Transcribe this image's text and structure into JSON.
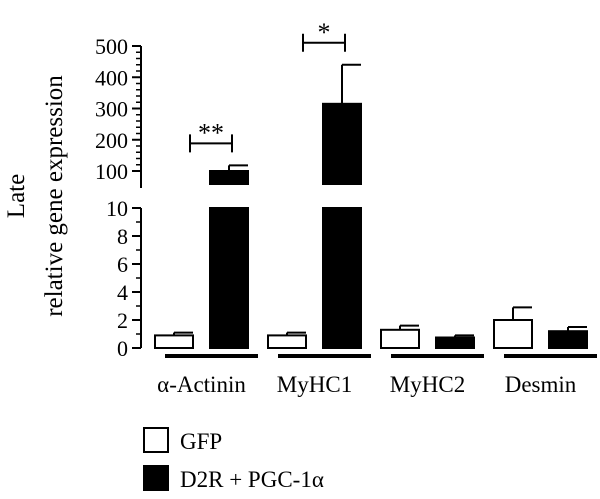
{
  "chart_data": {
    "type": "bar",
    "ylabel_lines": [
      "Late",
      "relative gene expression"
    ],
    "categories": [
      "α-Actinin",
      "MyHC1",
      "MyHC2",
      "Desmin"
    ],
    "series": [
      {
        "name": "GFP",
        "fill": "#ffffff",
        "values": [
          0.9,
          0.9,
          1.3,
          2.0
        ],
        "errors": [
          0.2,
          0.2,
          0.3,
          0.9
        ]
      },
      {
        "name": "D2R + PGC-1α",
        "fill": "#000000",
        "values": [
          100,
          315,
          0.75,
          1.2
        ],
        "errors": [
          18,
          125,
          0.15,
          0.3
        ]
      }
    ],
    "axis": {
      "broken": true,
      "lower_range": [
        0,
        10
      ],
      "lower_ticks": [
        0,
        2,
        4,
        6,
        8,
        10
      ],
      "upper_range": [
        90,
        500
      ],
      "upper_ticks": [
        100,
        200,
        300,
        400,
        500
      ]
    },
    "significance": [
      {
        "category_index": 0,
        "label": "**"
      },
      {
        "category_index": 1,
        "label": "*"
      }
    ],
    "legend_position": "bottom-left"
  }
}
